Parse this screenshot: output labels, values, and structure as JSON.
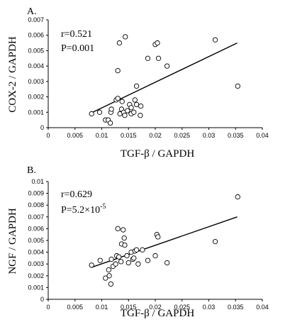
{
  "chart_data": [
    {
      "type": "scatter",
      "panel_label": "A.",
      "xlabel": "TGF-β / GAPDH",
      "ylabel": "COX-2 / GAPDH",
      "xlim": [
        0,
        0.04
      ],
      "ylim": [
        0,
        0.007
      ],
      "x_ticks": [
        "0",
        "0.005",
        "0.01",
        "0.015",
        "0.02",
        "0.025",
        "0.03",
        "0.035",
        "0.04"
      ],
      "y_ticks": [
        "0",
        "0.001",
        "0.002",
        "0.003",
        "0.004",
        "0.005",
        "0.006",
        "0.007"
      ],
      "annotations": {
        "r": "r=0.521",
        "p": "P=0.001"
      },
      "fit_line": {
        "x": [
          0.008,
          0.0353
        ],
        "y": [
          0.00095,
          0.0055
        ]
      },
      "points": [
        [
          0.0081,
          0.0009
        ],
        [
          0.0096,
          0.001
        ],
        [
          0.0107,
          0.0005
        ],
        [
          0.0112,
          0.0005
        ],
        [
          0.0116,
          0.0003
        ],
        [
          0.0117,
          0.001
        ],
        [
          0.0118,
          0.0012
        ],
        [
          0.0127,
          0.0018
        ],
        [
          0.013,
          0.0019
        ],
        [
          0.013,
          0.0037
        ],
        [
          0.0133,
          0.0055
        ],
        [
          0.0134,
          0.0009
        ],
        [
          0.0137,
          0.0012
        ],
        [
          0.0138,
          0.0017
        ],
        [
          0.0141,
          0.001
        ],
        [
          0.0143,
          0.0008
        ],
        [
          0.0144,
          0.0059
        ],
        [
          0.0148,
          0.0011
        ],
        [
          0.0152,
          0.0015
        ],
        [
          0.0155,
          0.0009
        ],
        [
          0.0155,
          0.0013
        ],
        [
          0.016,
          0.001
        ],
        [
          0.0162,
          0.0018
        ],
        [
          0.0165,
          0.0015
        ],
        [
          0.0165,
          0.0027
        ],
        [
          0.0172,
          0.0008
        ],
        [
          0.0173,
          0.0014
        ],
        [
          0.0186,
          0.0045
        ],
        [
          0.02,
          0.0054
        ],
        [
          0.0204,
          0.0055
        ],
        [
          0.0206,
          0.0045
        ],
        [
          0.0222,
          0.004
        ],
        [
          0.0312,
          0.0057
        ],
        [
          0.0354,
          0.0027
        ]
      ]
    },
    {
      "type": "scatter",
      "panel_label": "B.",
      "xlabel": "TGF-β / GAPDH",
      "ylabel": "NGF / GAPDH",
      "xlim": [
        0,
        0.04
      ],
      "ylim": [
        0,
        0.01
      ],
      "x_ticks": [
        "0",
        "0.005",
        "0.01",
        "0.015",
        "0.02",
        "0.025",
        "0.03",
        "0.035",
        "0.04"
      ],
      "y_ticks": [
        "0",
        "0.001",
        "0.002",
        "0.003",
        "0.004",
        "0.005",
        "0.006",
        "0.007",
        "0.008",
        "0.009",
        "0.01"
      ],
      "annotations": {
        "r": "r=0.629",
        "p_prefix": "P=5.2×10",
        "p_exp": "-5"
      },
      "fit_line": {
        "x": [
          0.008,
          0.0353
        ],
        "y": [
          0.0027,
          0.007
        ]
      },
      "points": [
        [
          0.0081,
          0.0029
        ],
        [
          0.0097,
          0.0033
        ],
        [
          0.0107,
          0.0018
        ],
        [
          0.0113,
          0.0025
        ],
        [
          0.0114,
          0.002
        ],
        [
          0.0117,
          0.0013
        ],
        [
          0.0118,
          0.0034
        ],
        [
          0.0121,
          0.0028
        ],
        [
          0.0126,
          0.003
        ],
        [
          0.0128,
          0.0037
        ],
        [
          0.013,
          0.006
        ],
        [
          0.0132,
          0.0036
        ],
        [
          0.0136,
          0.0032
        ],
        [
          0.0137,
          0.0047
        ],
        [
          0.014,
          0.0059
        ],
        [
          0.0142,
          0.0052
        ],
        [
          0.0143,
          0.0046
        ],
        [
          0.0147,
          0.0037
        ],
        [
          0.015,
          0.0031
        ],
        [
          0.0155,
          0.004
        ],
        [
          0.0158,
          0.0034
        ],
        [
          0.016,
          0.0035
        ],
        [
          0.0162,
          0.0041
        ],
        [
          0.0165,
          0.0042
        ],
        [
          0.0168,
          0.003
        ],
        [
          0.0176,
          0.0042
        ],
        [
          0.0186,
          0.0033
        ],
        [
          0.02,
          0.0037
        ],
        [
          0.0203,
          0.0055
        ],
        [
          0.0205,
          0.0053
        ],
        [
          0.0222,
          0.0031
        ],
        [
          0.0312,
          0.0049
        ],
        [
          0.0354,
          0.0087
        ]
      ]
    }
  ]
}
